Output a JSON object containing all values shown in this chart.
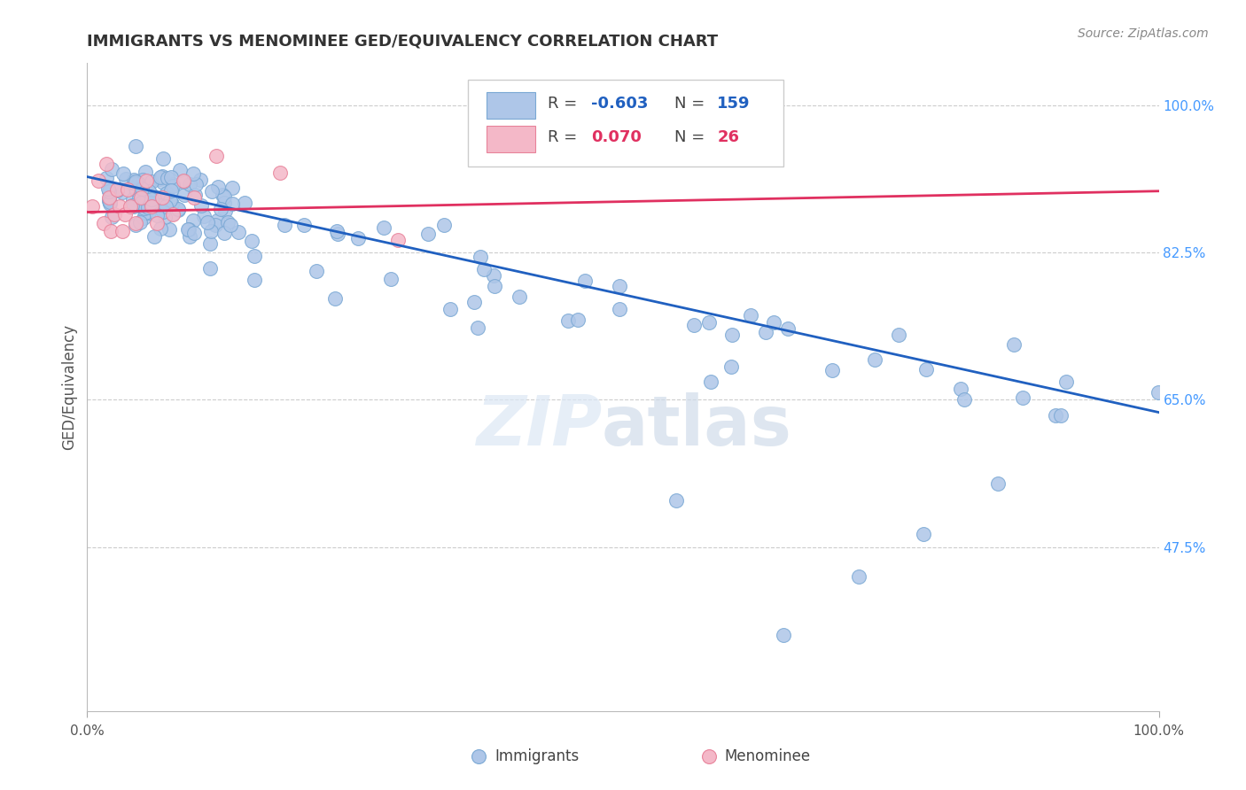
{
  "title": "IMMIGRANTS VS MENOMINEE GED/EQUIVALENCY CORRELATION CHART",
  "ylabel": "GED/Equivalency",
  "source_text": "Source: ZipAtlas.com",
  "legend_blue_r": "-0.603",
  "legend_blue_n": "159",
  "legend_pink_r": "0.070",
  "legend_pink_n": "26",
  "xlim": [
    0.0,
    1.0
  ],
  "ylim": [
    0.28,
    1.05
  ],
  "right_yticks": [
    0.475,
    0.65,
    0.825,
    1.0
  ],
  "right_yticklabels": [
    "47.5%",
    "65.0%",
    "82.5%",
    "100.0%"
  ],
  "hline_y": [
    0.475,
    0.65,
    0.825,
    1.0
  ],
  "blue_scatter_color": "#aec6e8",
  "blue_scatter_edge": "#7aa8d4",
  "pink_scatter_color": "#f4b8c8",
  "pink_scatter_edge": "#e8829a",
  "blue_line_color": "#2060c0",
  "pink_line_color": "#e03060",
  "blue_trend_x0": 0.0,
  "blue_trend_y0": 0.915,
  "blue_trend_x1": 1.0,
  "blue_trend_y1": 0.635,
  "pink_trend_x0": 0.0,
  "pink_trend_y0": 0.873,
  "pink_trend_x1": 1.0,
  "pink_trend_y1": 0.898,
  "background_color": "#ffffff",
  "grid_color": "#cccccc",
  "title_color": "#333333",
  "source_color": "#888888",
  "ylabel_color": "#555555",
  "xtick_color": "#555555",
  "right_ytick_color": "#4499ff"
}
